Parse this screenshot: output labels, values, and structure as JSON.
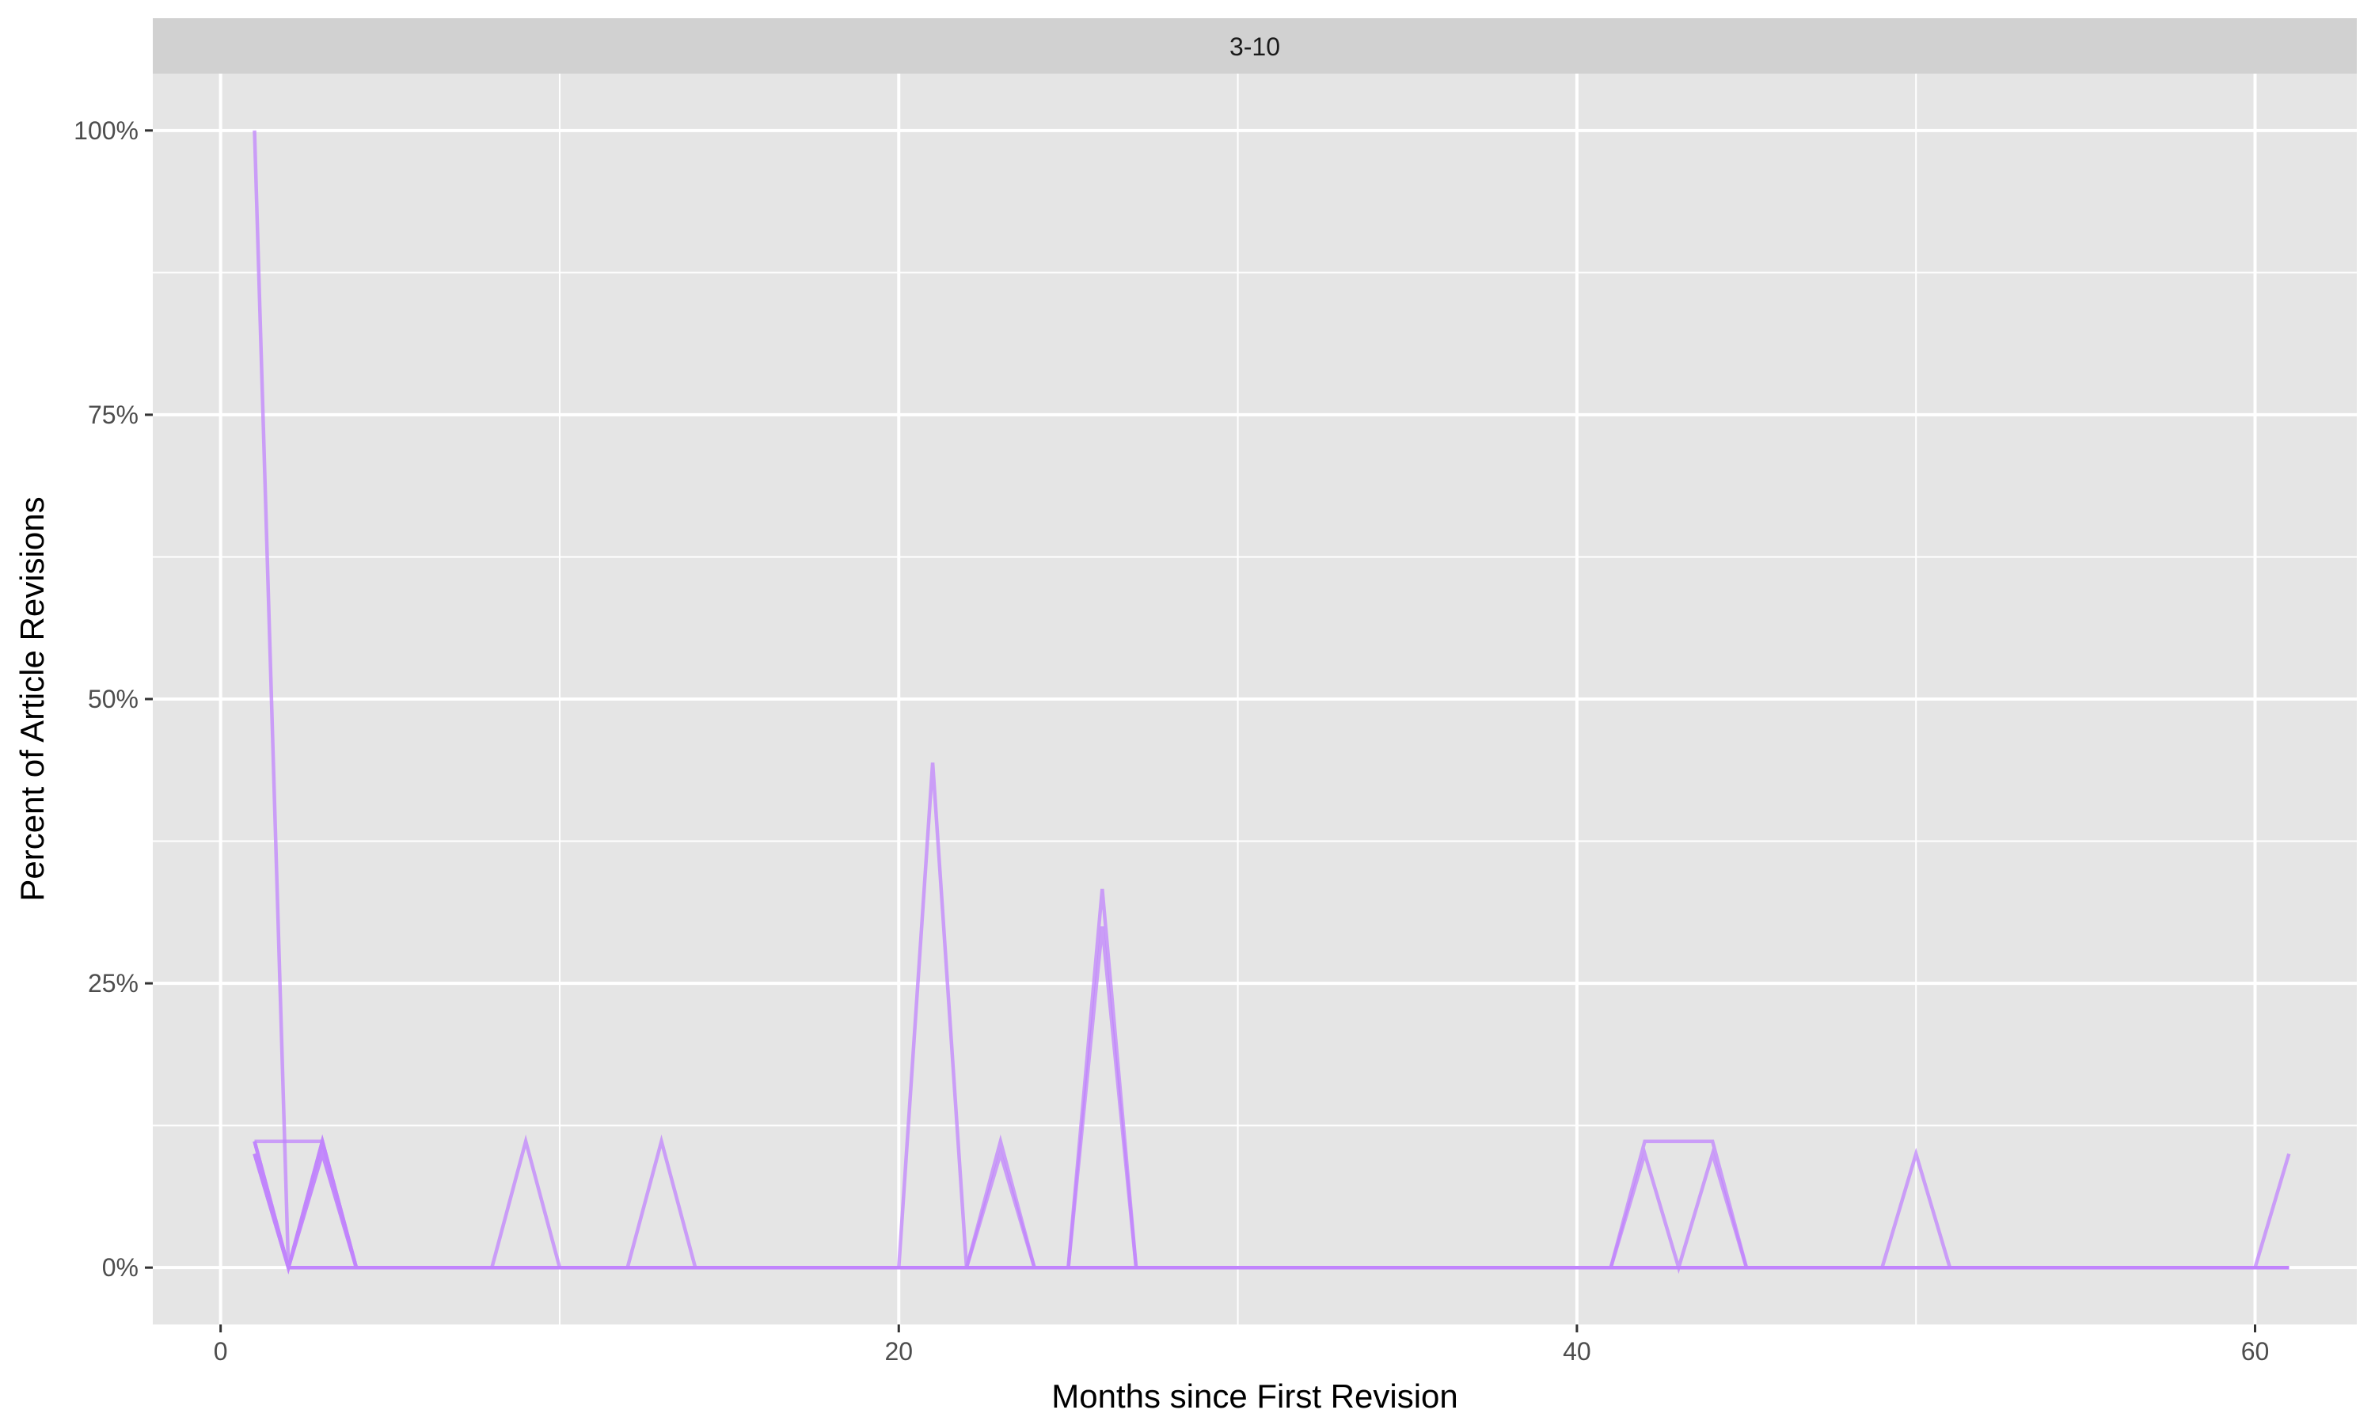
{
  "chart_data": {
    "type": "line",
    "facet_label": "3-10",
    "xlabel": "Months since First Revision",
    "ylabel": "Percent of Article Revisions",
    "xlim": [
      -2,
      63
    ],
    "ylim": [
      -5,
      105
    ],
    "x_ticks": [
      0,
      20,
      40,
      60
    ],
    "x_tick_labels": [
      "0",
      "20",
      "40",
      "60"
    ],
    "y_ticks": [
      0,
      25,
      50,
      75,
      100
    ],
    "y_tick_labels": [
      "0%",
      "25%",
      "50%",
      "75%",
      "100%"
    ],
    "grid": true,
    "colors": {
      "panel_bg": "#e5e5e5",
      "strip_bg": "#d1d1d1",
      "grid": "#ffffff",
      "line": "#c084fc",
      "line_dark": "#a855f7",
      "tick": "#333333"
    },
    "series": [
      {
        "x": [
          1,
          2,
          3,
          4,
          61
        ],
        "y": [
          100,
          0,
          11.1,
          0,
          0
        ]
      },
      {
        "x": [
          1,
          2,
          3,
          4,
          8,
          9,
          10,
          12,
          13,
          14,
          61
        ],
        "y": [
          11.1,
          0,
          11.1,
          0,
          0,
          11.1,
          0,
          0,
          11.1,
          0,
          0
        ]
      },
      {
        "x": [
          1,
          2,
          3,
          4,
          20,
          21,
          22,
          23,
          24,
          61
        ],
        "y": [
          11.1,
          0,
          11.1,
          0,
          0,
          44.4,
          0,
          11.1,
          0,
          0
        ]
      },
      {
        "x": [
          1,
          2,
          3,
          4,
          25,
          26,
          27,
          61
        ],
        "y": [
          10,
          0,
          10,
          0,
          0,
          33.3,
          0,
          0
        ]
      },
      {
        "x": [
          1,
          2,
          3,
          4,
          22,
          23,
          24,
          25,
          26,
          27,
          61
        ],
        "y": [
          10,
          0,
          10,
          0,
          0,
          10,
          0,
          0,
          30,
          0,
          0
        ]
      },
      {
        "x": [
          1,
          3,
          4,
          41,
          42,
          43,
          44,
          45,
          61
        ],
        "y": [
          11.1,
          11.1,
          0,
          0,
          10,
          0,
          10,
          0,
          0
        ]
      },
      {
        "x": [
          1,
          2,
          41,
          42,
          44,
          45,
          61
        ],
        "y": [
          11.1,
          0,
          0,
          11.1,
          11.1,
          0,
          0
        ]
      },
      {
        "x": [
          1,
          2,
          49,
          50,
          51,
          60,
          61
        ],
        "y": [
          10,
          0,
          0,
          10,
          0,
          0,
          10
        ]
      },
      {
        "x": [
          2,
          61
        ],
        "y": [
          0,
          0
        ]
      }
    ]
  }
}
